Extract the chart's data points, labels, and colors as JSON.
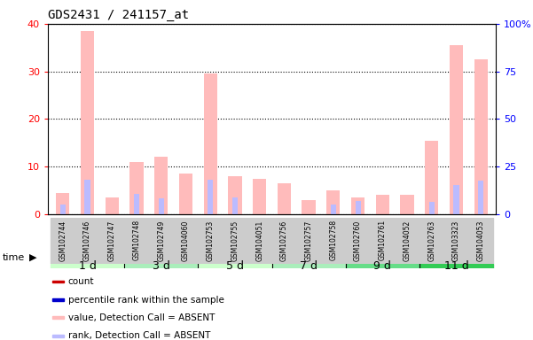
{
  "title": "GDS2431 / 241157_at",
  "samples": [
    "GSM102744",
    "GSM102746",
    "GSM102747",
    "GSM102748",
    "GSM102749",
    "GSM104060",
    "GSM102753",
    "GSM102755",
    "GSM104051",
    "GSM102756",
    "GSM102757",
    "GSM102758",
    "GSM102760",
    "GSM102761",
    "GSM104052",
    "GSM102763",
    "GSM103323",
    "GSM104053"
  ],
  "groups": [
    {
      "label": "1 d",
      "count": 3,
      "color": "#ccffcc"
    },
    {
      "label": "3 d",
      "count": 3,
      "color": "#aaeebb"
    },
    {
      "label": "5 d",
      "count": 3,
      "color": "#ccffcc"
    },
    {
      "label": "7 d",
      "count": 3,
      "color": "#aaeebb"
    },
    {
      "label": "9 d",
      "count": 3,
      "color": "#66dd88"
    },
    {
      "label": "11 d",
      "count": 3,
      "color": "#33cc55"
    }
  ],
  "absent_value": [
    4.5,
    38.5,
    3.5,
    11.0,
    12.0,
    8.5,
    29.5,
    8.0,
    7.5,
    6.5,
    3.0,
    5.0,
    3.5,
    4.0,
    4.0,
    15.5,
    35.5,
    32.5
  ],
  "absent_rank": [
    5.0,
    18.0,
    0.0,
    10.5,
    8.5,
    0.0,
    18.0,
    9.0,
    0.0,
    0.0,
    0.0,
    5.0,
    7.0,
    0.0,
    0.0,
    6.5,
    15.5,
    17.5
  ],
  "ylim_left": [
    0,
    40
  ],
  "ylim_right": [
    0,
    100
  ],
  "yticks_left": [
    0,
    10,
    20,
    30,
    40
  ],
  "yticks_right": [
    0,
    25,
    50,
    75,
    100
  ],
  "absent_value_color": "#ffbbbb",
  "absent_rank_color": "#bbbbff",
  "plot_bg": "#ffffff",
  "tick_area_bg": "#d8d8d8",
  "legend_items": [
    {
      "color": "#cc0000",
      "label": "count"
    },
    {
      "color": "#0000cc",
      "label": "percentile rank within the sample"
    },
    {
      "color": "#ffbbbb",
      "label": "value, Detection Call = ABSENT"
    },
    {
      "color": "#bbbbff",
      "label": "rank, Detection Call = ABSENT"
    }
  ]
}
